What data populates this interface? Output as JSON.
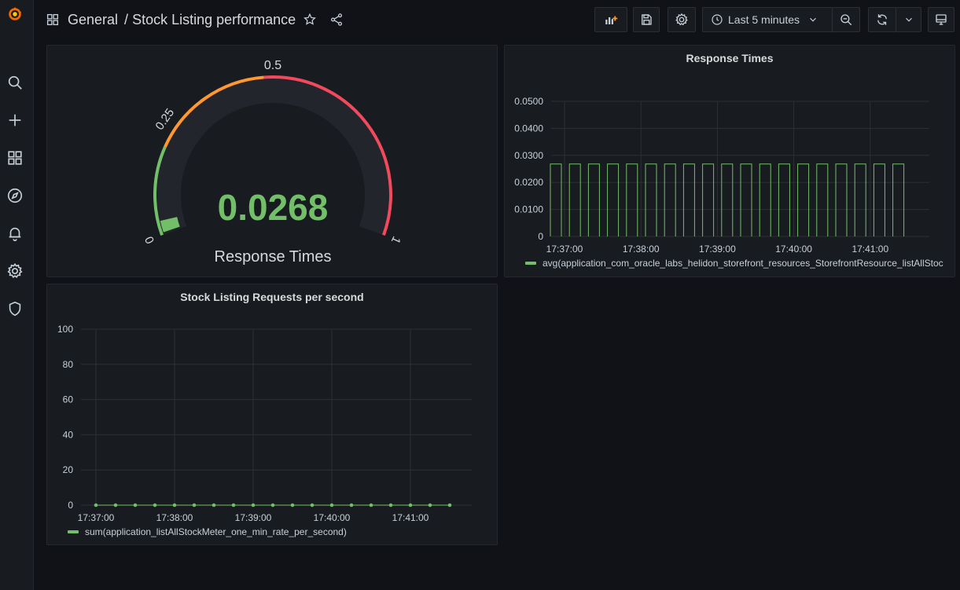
{
  "breadcrumb": {
    "folder": "General",
    "dashboard": "Stock Listing performance"
  },
  "time_picker": {
    "label": "Last 5 minutes"
  },
  "gauge": {
    "title": "Response Times",
    "value_text": "0.0268",
    "value": 0.0268,
    "min": 0,
    "max": 1,
    "tick_labels": {
      "min": "0",
      "quarter": "0.25",
      "half": "0.5",
      "max": "1"
    },
    "colors": {
      "value": "#73bf69",
      "green": "#73bf69",
      "orange": "#ff9830",
      "red": "#f2495c",
      "track": "#22252b"
    }
  },
  "chart_data": [
    {
      "type": "line",
      "title": "Response Times",
      "y_ticks": [
        "0.0500",
        "0.0400",
        "0.0300",
        "0.0200",
        "0.0100",
        "0"
      ],
      "x_ticks": [
        "17:37:00",
        "17:38:00",
        "17:39:00",
        "17:40:00",
        "17:41:00"
      ],
      "ylim": [
        0,
        0.05
      ],
      "series": [
        {
          "name": "avg(application_com_oracle_labs_helidon_storefront_resources_StorefrontResource_listAllStoc",
          "color": "#73bf69",
          "pulse_value": 0.0268,
          "pulse_count": 19
        }
      ]
    },
    {
      "type": "line",
      "title": "Stock Listing Requests per second",
      "y_ticks": [
        "100",
        "80",
        "60",
        "40",
        "20",
        "0"
      ],
      "x_ticks": [
        "17:37:00",
        "17:38:00",
        "17:39:00",
        "17:40:00",
        "17:41:00"
      ],
      "ylim": [
        0,
        100
      ],
      "series": [
        {
          "name": "sum(application_listAllStockMeter_one_min_rate_per_second)",
          "color": "#73bf69",
          "values": [
            0,
            0,
            0,
            0,
            0,
            0,
            0,
            0,
            0,
            0,
            0,
            0,
            0,
            0,
            0,
            0,
            0,
            0,
            0
          ]
        }
      ]
    }
  ]
}
